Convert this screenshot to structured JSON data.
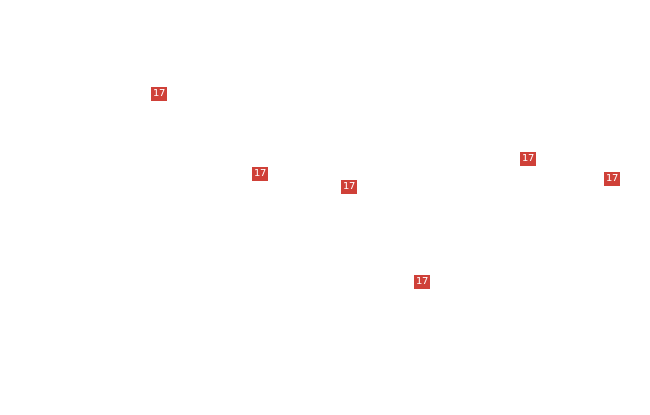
{
  "map": {
    "marker_color": "#cf4038",
    "markers": [
      {
        "label": "17"
      },
      {
        "label": "17"
      },
      {
        "label": "17"
      },
      {
        "label": "17"
      },
      {
        "label": "17"
      },
      {
        "label": "17"
      }
    ]
  }
}
